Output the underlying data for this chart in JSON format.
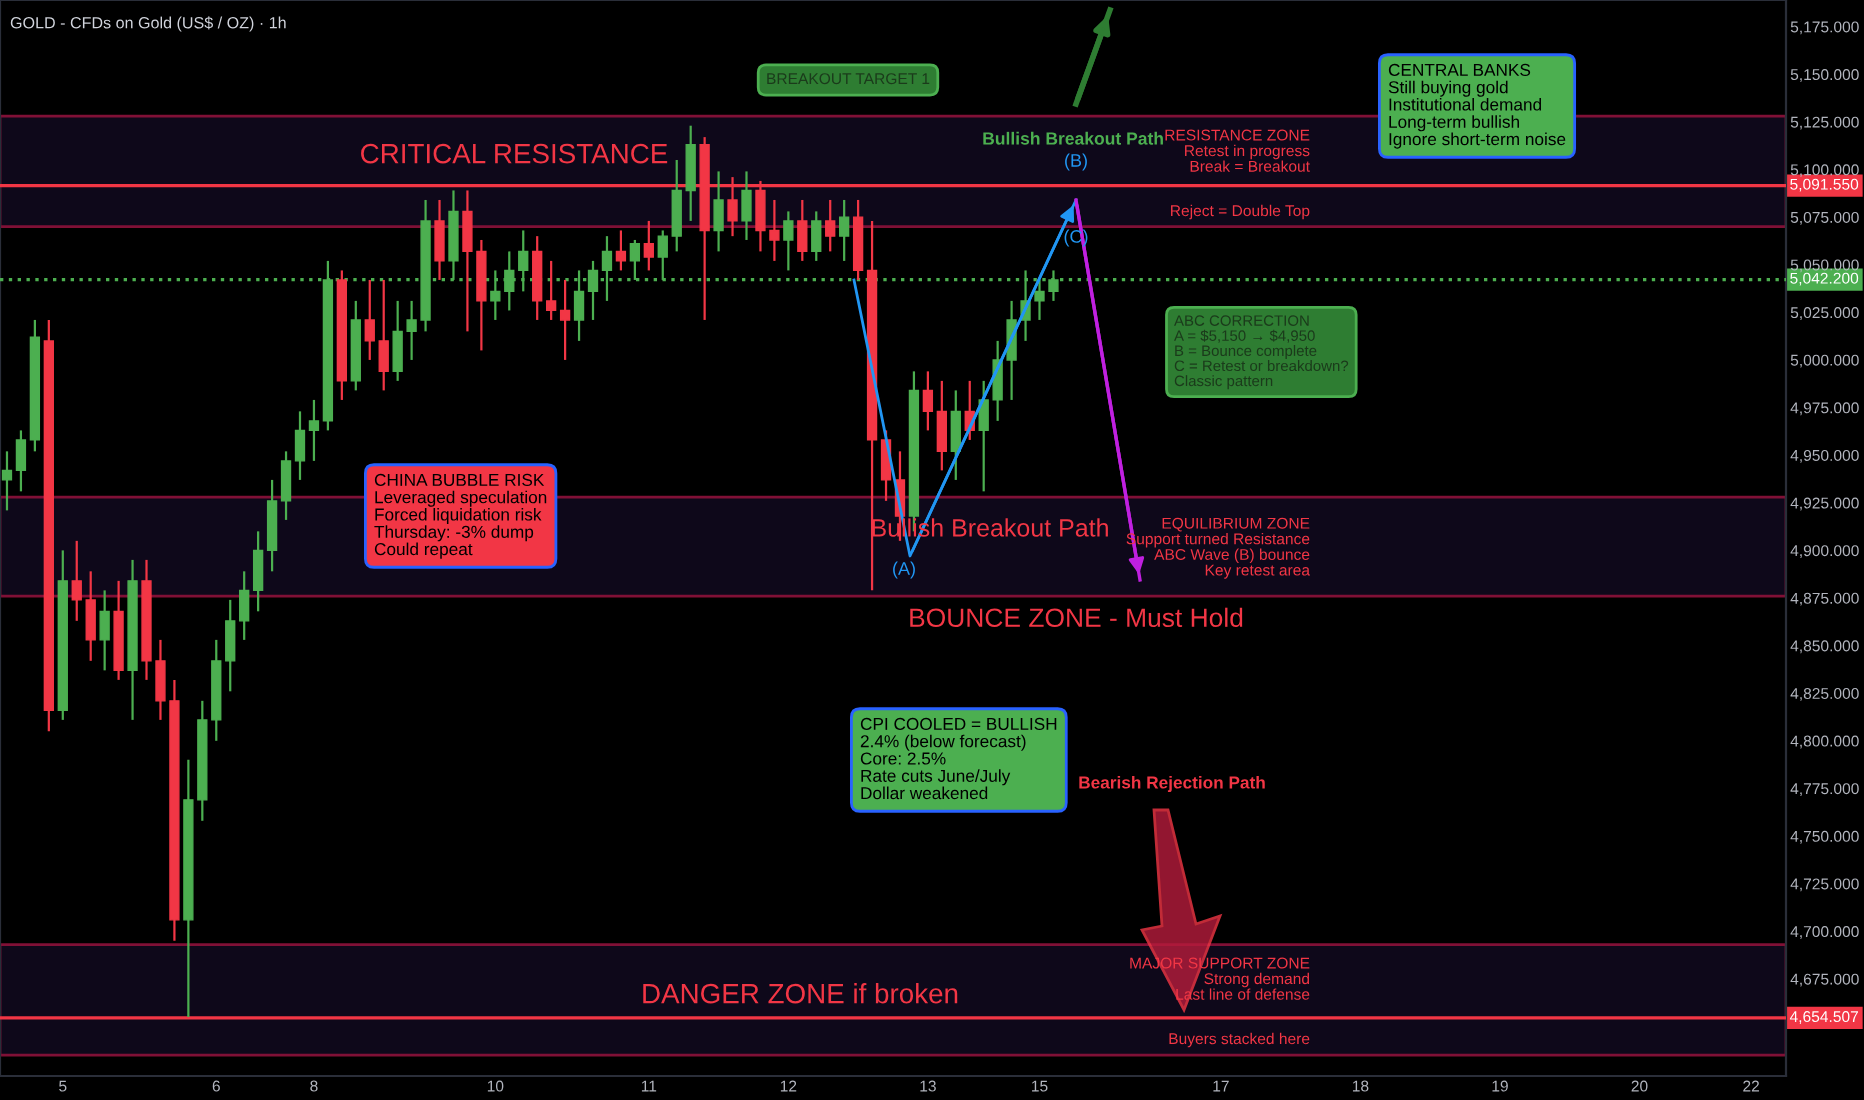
{
  "chart_data": {
    "type": "candlestick",
    "title": "GOLD - CFDs on Gold (US$ / OZ) · 1h",
    "categories": [
      null,
      null,
      null,
      null,
      "5",
      null,
      null,
      null,
      null,
      null,
      null,
      null,
      null,
      null,
      null,
      "6",
      null,
      null,
      null,
      null,
      null,
      null,
      "8",
      null,
      null,
      null,
      null,
      null,
      null,
      null,
      null,
      null,
      null,
      null,
      null,
      "10",
      null,
      null,
      null,
      null,
      null,
      null,
      null,
      null,
      null,
      null,
      "11",
      null,
      null,
      null,
      null,
      null,
      null,
      null,
      null,
      null,
      "12",
      null,
      null,
      null,
      null,
      null,
      null,
      null,
      null,
      null,
      "13",
      null,
      null,
      null,
      null,
      null,
      null,
      null,
      "15",
      null,
      null,
      null,
      null,
      null,
      null,
      null,
      null,
      null,
      null,
      null,
      null,
      "17",
      null,
      null,
      null,
      null,
      null,
      null,
      null,
      null,
      null,
      "18",
      null,
      null,
      null,
      null,
      null,
      null,
      null,
      null,
      null,
      "19",
      null,
      null,
      null,
      null,
      null,
      null,
      null,
      null,
      null,
      "20",
      null,
      null,
      null,
      null,
      null,
      null,
      null,
      "22",
      null,
      null
    ],
    "ohlc": [
      [
        4937,
        4952,
        4921,
        4942
      ],
      [
        4942,
        4963,
        4931,
        4958
      ],
      [
        4958,
        5021,
        4952,
        5012
      ],
      [
        5010,
        5021,
        4805,
        4816
      ],
      [
        4816,
        4900,
        4811,
        4884
      ],
      [
        4884,
        4905,
        4863,
        4874
      ],
      [
        4874,
        4889,
        4842,
        4853
      ],
      [
        4853,
        4879,
        4837,
        4868
      ],
      [
        4868,
        4884,
        4832,
        4837
      ],
      [
        4837,
        4895,
        4811,
        4884
      ],
      [
        4884,
        4895,
        4832,
        4842
      ],
      [
        4842,
        4853,
        4811,
        4821
      ],
      [
        4821,
        4832,
        4695,
        4706
      ],
      [
        4706,
        4790,
        4655,
        4769
      ],
      [
        4769,
        4821,
        4758,
        4811
      ],
      [
        4811,
        4853,
        4800,
        4842
      ],
      [
        4842,
        4874,
        4826,
        4863
      ],
      [
        4863,
        4889,
        4853,
        4879
      ],
      [
        4879,
        4910,
        4868,
        4900
      ],
      [
        4900,
        4937,
        4889,
        4926
      ],
      [
        4926,
        4952,
        4916,
        4947
      ],
      [
        4947,
        4973,
        4937,
        4963
      ],
      [
        4963,
        4979,
        4947,
        4968
      ],
      [
        4968,
        5052,
        4963,
        5042
      ],
      [
        5042,
        5047,
        4979,
        4989
      ],
      [
        4989,
        5031,
        4984,
        5021
      ],
      [
        5021,
        5042,
        5000,
        5010
      ],
      [
        5010,
        5042,
        4984,
        4994
      ],
      [
        4994,
        5031,
        4989,
        5015
      ],
      [
        5015,
        5031,
        5000,
        5021
      ],
      [
        5021,
        5084,
        5015,
        5073
      ],
      [
        5073,
        5084,
        5042,
        5052
      ],
      [
        5052,
        5089,
        5042,
        5078
      ],
      [
        5078,
        5089,
        5015,
        5057
      ],
      [
        5057,
        5063,
        5005,
        5031
      ],
      [
        5031,
        5047,
        5021,
        5036
      ],
      [
        5036,
        5057,
        5026,
        5047
      ],
      [
        5047,
        5068,
        5036,
        5057
      ],
      [
        5057,
        5065,
        5021,
        5031
      ],
      [
        5031,
        5052,
        5021,
        5026
      ],
      [
        5026,
        5042,
        5000,
        5021
      ],
      [
        5021,
        5047,
        5010,
        5036
      ],
      [
        5036,
        5052,
        5021,
        5047
      ],
      [
        5047,
        5065,
        5031,
        5057
      ],
      [
        5057,
        5068,
        5047,
        5052
      ],
      [
        5052,
        5063,
        5042,
        5061
      ],
      [
        5061,
        5073,
        5047,
        5054
      ],
      [
        5054,
        5068,
        5042,
        5065
      ],
      [
        5065,
        5105,
        5057,
        5089
      ],
      [
        5089,
        5123,
        5073,
        5113
      ],
      [
        5113,
        5117,
        5021,
        5068
      ],
      [
        5068,
        5099,
        5057,
        5084
      ],
      [
        5084,
        5096,
        5065,
        5073
      ],
      [
        5073,
        5099,
        5063,
        5089
      ],
      [
        5089,
        5094,
        5057,
        5068
      ],
      [
        5068,
        5084,
        5052,
        5063
      ],
      [
        5063,
        5078,
        5047,
        5073
      ],
      [
        5073,
        5084,
        5052,
        5057
      ],
      [
        5057,
        5078,
        5052,
        5073
      ],
      [
        5073,
        5084,
        5057,
        5065
      ],
      [
        5065,
        5084,
        5052,
        5075
      ],
      [
        5075,
        5084,
        5042,
        5047
      ],
      [
        5047,
        5073,
        4879,
        4958
      ],
      [
        4958,
        4963,
        4926,
        4937
      ],
      [
        4937,
        4952,
        4905,
        4918
      ],
      [
        4918,
        4994,
        4910,
        4984
      ],
      [
        4984,
        4994,
        4963,
        4973
      ],
      [
        4973,
        4989,
        4942,
        4952
      ],
      [
        4952,
        4984,
        4937,
        4973
      ],
      [
        4973,
        4989,
        4958,
        4963
      ],
      [
        4963,
        4989,
        4931,
        4979
      ],
      [
        4979,
        5010,
        4968,
        5000
      ],
      [
        5000,
        5031,
        4979,
        5021
      ],
      [
        5021,
        5047,
        5010,
        5031
      ],
      [
        5031,
        5042,
        5021,
        5036
      ],
      [
        5036,
        5047,
        5031,
        5042
      ],
      null,
      null,
      null,
      null,
      null,
      null,
      null,
      null,
      null,
      null,
      null,
      null,
      null,
      null,
      null,
      null,
      null,
      null,
      null,
      null,
      null,
      null,
      null,
      null,
      null,
      null,
      null,
      null,
      null,
      null,
      null,
      null,
      null,
      null,
      null,
      null,
      null,
      null,
      null,
      null,
      null,
      null,
      null,
      null,
      null,
      null,
      null,
      null,
      null,
      null,
      null,
      null
    ],
    "colors": [
      "#4caf50",
      "#4caf50",
      "#4caf50",
      "#f23645",
      "#4caf50",
      "#f23645",
      "#f23645",
      "#4caf50",
      "#f23645",
      "#4caf50",
      "#f23645",
      "#f23645",
      "#f23645",
      "#4caf50",
      "#4caf50",
      "#4caf50",
      "#4caf50",
      "#4caf50",
      "#4caf50",
      "#4caf50",
      "#4caf50",
      "#4caf50",
      "#4caf50",
      "#4caf50",
      "#f23645",
      "#4caf50",
      "#f23645",
      "#f23645",
      "#4caf50",
      "#4caf50",
      "#4caf50",
      "#f23645",
      "#4caf50",
      "#f23645",
      "#f23645",
      "#4caf50",
      "#4caf50",
      "#4caf50",
      "#f23645",
      "#f23645",
      "#f23645",
      "#4caf50",
      "#4caf50",
      "#4caf50",
      "#f23645",
      "#4caf50",
      "#f23645",
      "#4caf50",
      "#4caf50",
      "#4caf50",
      "#f23645",
      "#4caf50",
      "#f23645",
      "#4caf50",
      "#f23645",
      "#f23645",
      "#4caf50",
      "#f23645",
      "#4caf50",
      "#f23645",
      "#4caf50",
      "#f23645",
      "#f23645",
      "#f23645",
      "#f23645",
      "#4caf50",
      "#f23645",
      "#f23645",
      "#4caf50",
      "#f23645",
      "#4caf50",
      "#4caf50",
      "#4caf50",
      "#4caf50",
      "#4caf50",
      "#4caf50",
      null,
      null,
      null,
      null,
      null,
      null,
      null,
      null,
      null,
      null,
      null,
      null,
      null,
      null,
      null,
      null,
      null,
      null,
      null,
      null,
      null,
      null,
      null,
      null,
      null,
      null,
      null,
      null,
      null,
      null,
      null,
      null,
      null,
      null,
      null,
      null,
      null,
      null,
      null,
      null,
      null,
      null,
      null,
      null,
      null,
      null,
      null,
      null,
      null,
      null,
      null,
      null
    ],
    "ylim": [
      4624,
      5189
    ],
    "yticks": [
      {
        "value": 4675,
        "label": "4,675.000"
      },
      {
        "value": 4700,
        "label": "4,700.000"
      },
      {
        "value": 4725,
        "label": "4,725.000"
      },
      {
        "value": 4750,
        "label": "4,750.000"
      },
      {
        "value": 4775,
        "label": "4,775.000"
      },
      {
        "value": 4800,
        "label": "4,800.000"
      },
      {
        "value": 4825,
        "label": "4,825.000"
      },
      {
        "value": 4850,
        "label": "4,850.000"
      },
      {
        "value": 4875,
        "label": "4,875.000"
      },
      {
        "value": 4900,
        "label": "4,900.000"
      },
      {
        "value": 4925,
        "label": "4,925.000"
      },
      {
        "value": 4950,
        "label": "4,950.000"
      },
      {
        "value": 4975,
        "label": "4,975.000"
      },
      {
        "value": 5000,
        "label": "5,000.000"
      },
      {
        "value": 5025,
        "label": "5,025.000"
      },
      {
        "value": 5050,
        "label": "5,050.000"
      },
      {
        "value": 5075,
        "label": "5,075.000"
      },
      {
        "value": 5100,
        "label": "5,100.000"
      },
      {
        "value": 5125,
        "label": "5,125.000"
      },
      {
        "value": 5150,
        "label": "5,150.000"
      },
      {
        "value": 5175,
        "label": "5,175.000"
      }
    ],
    "ref_lines": [
      {
        "axis": "y",
        "value": 5091.55,
        "label": "5,091.550",
        "color": "#f23645",
        "line_style": "solid"
      },
      {
        "axis": "y",
        "value": 5042.2,
        "label": "5,042.200",
        "color": "#4caf50",
        "line_style": "dotted"
      },
      {
        "axis": "y",
        "value": 4654.507,
        "label": "4,654.507",
        "color": "#f23645",
        "line_style": "solid"
      }
    ],
    "bands": [
      {
        "axis": "y",
        "from": 5070,
        "to": 5128,
        "color": "#e91e63"
      },
      {
        "axis": "y",
        "from": 4876,
        "to": 4928,
        "color": "#e91e63"
      },
      {
        "axis": "y",
        "from": 4635,
        "to": 4693,
        "color": "#e91e63"
      }
    ],
    "grid": false,
    "annotations": [
      "CRITICAL RESISTANCE",
      "BREAKOUT TARGET 1",
      "Bullish Breakout Path",
      "RESISTANCE ZONE\nRetest in progress\nBreak = Breakout",
      "Reject = Double Top",
      "(B)",
      "(C)",
      "(A)",
      "CENTRAL BANKS\nStill buying gold\nInstitutional demand\nLong-term bullish\nIgnore short-term noise",
      "ABC CORRECTION\nA = $5,150 → $4,950\nB = Bounce complete\nC = Retest or breakdown?\nClassic pattern",
      "CHINA BUBBLE RISK\nLeveraged speculation\nForced liquidation risk\nThursday: -3% dump\nCould repeat",
      "Bullish Breakout Path",
      "EQUILIBRIUM ZONE\nSupport turned Resistance\nABC Wave (B) bounce\nKey retest area",
      "BOUNCE ZONE - Must Hold",
      "CPI COOLED = BULLISH\n2.4% (below forecast)\nCore: 2.5%\nRate cuts June/July\nDollar weakened",
      "Bearish Rejection Path",
      "DANGER ZONE if broken",
      "MAJOR SUPPORT ZONE\nStrong demand\nLast line of defense",
      "Buyers stacked here"
    ]
  }
}
